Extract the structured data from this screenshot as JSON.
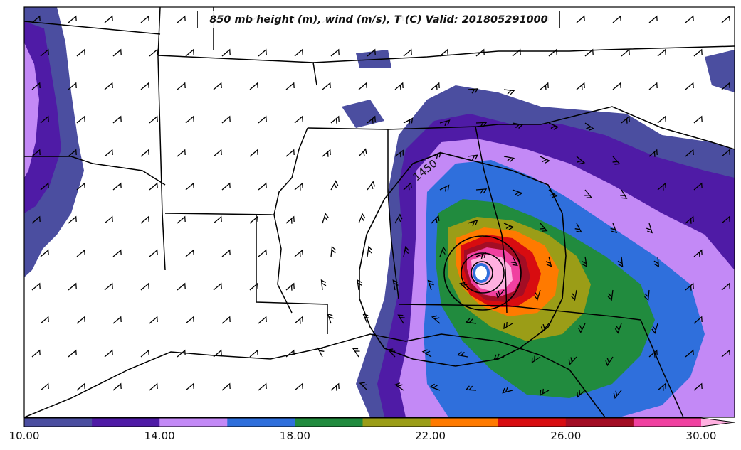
{
  "title": "850 mb height (m), wind (m/s), T (C) Valid: 201805291000",
  "contour_label": "1450",
  "colorbar": {
    "ticks": [
      "10.00",
      "14.00",
      "18.00",
      "22.00",
      "26.00",
      "30.00"
    ],
    "colors": [
      "#4b4ea0",
      "#4f1ba6",
      "#c389f6",
      "#2f6fdc",
      "#218b3e",
      "#9b9d17",
      "#ff7a00",
      "#d80c10",
      "#a30d24",
      "#f040a0",
      "#ffb0e0"
    ]
  },
  "palette": {
    "indigo": "#4b4ea0",
    "purple": "#4f1ba6",
    "lavender": "#c389f6",
    "blue": "#2f6fdc",
    "green": "#218b3e",
    "olive": "#9b9d17",
    "orange": "#ff7a00",
    "red": "#d80c10",
    "maroon": "#a30d24",
    "pink": "#f040a0",
    "lightpink": "#ffb0e0"
  }
}
